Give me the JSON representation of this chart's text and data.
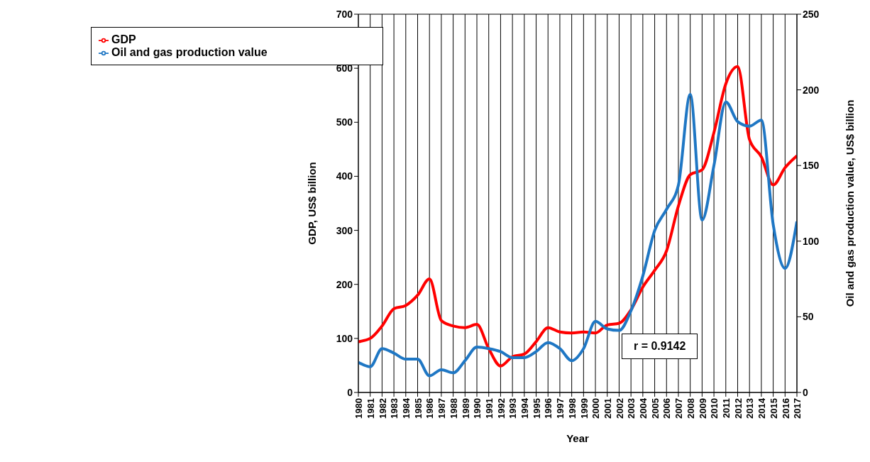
{
  "chart_data": {
    "type": "line",
    "xlabel": "Year",
    "ylabel": "GDP, US$ billion",
    "y2label": "Oil and gas production value, US$ billion",
    "x": [
      1980,
      1981,
      1982,
      1983,
      1984,
      1985,
      1986,
      1987,
      1988,
      1989,
      1990,
      1991,
      1992,
      1993,
      1994,
      1995,
      1996,
      1997,
      1998,
      1999,
      2000,
      2001,
      2002,
      2003,
      2004,
      2005,
      2006,
      2007,
      2008,
      2009,
      2010,
      2011,
      2012,
      2013,
      2014,
      2015,
      2016,
      2017
    ],
    "xlim": [
      1980,
      2017
    ],
    "xticks": [
      1980,
      1981,
      1982,
      1983,
      1984,
      1985,
      1986,
      1987,
      1988,
      1989,
      1990,
      1991,
      1992,
      1993,
      1994,
      1995,
      1996,
      1997,
      1998,
      1999,
      2000,
      2001,
      2002,
      2003,
      2004,
      2005,
      2006,
      2007,
      2008,
      2009,
      2010,
      2011,
      2012,
      2013,
      2014,
      2015,
      2016,
      2017
    ],
    "ylim": [
      0,
      700
    ],
    "yticks": [
      0,
      100,
      200,
      300,
      400,
      500,
      600,
      700
    ],
    "y2lim": [
      0,
      250
    ],
    "y2ticks": [
      0,
      50,
      100,
      150,
      200,
      250
    ],
    "series": [
      {
        "name": "GDP",
        "color": "#ff0000",
        "values": [
          94,
          100,
          123,
          155,
          161,
          180,
          210,
          133,
          123,
          120,
          126,
          81,
          49,
          66,
          71,
          94,
          120,
          112,
          110,
          112,
          110,
          125,
          128,
          153,
          195,
          226,
          262,
          345,
          403,
          412,
          481,
          571,
          603,
          468,
          436,
          384,
          416,
          438
        ]
      },
      {
        "name": "Oil and gas production value",
        "color": "#1f77c4",
        "axis": "y2",
        "values": [
          20,
          17,
          29,
          26,
          22,
          22,
          11,
          15,
          13,
          21,
          30,
          29,
          27,
          23,
          23,
          27,
          33,
          29,
          21,
          29,
          47,
          42,
          41,
          54,
          77,
          107,
          121,
          137,
          197,
          114,
          150,
          192,
          179,
          176,
          180,
          111,
          82,
          113
        ]
      }
    ],
    "annotations": [
      "r = 0.9142"
    ],
    "grid": true,
    "legend": "top left",
    "marker": "none",
    "line_style": "solid"
  }
}
